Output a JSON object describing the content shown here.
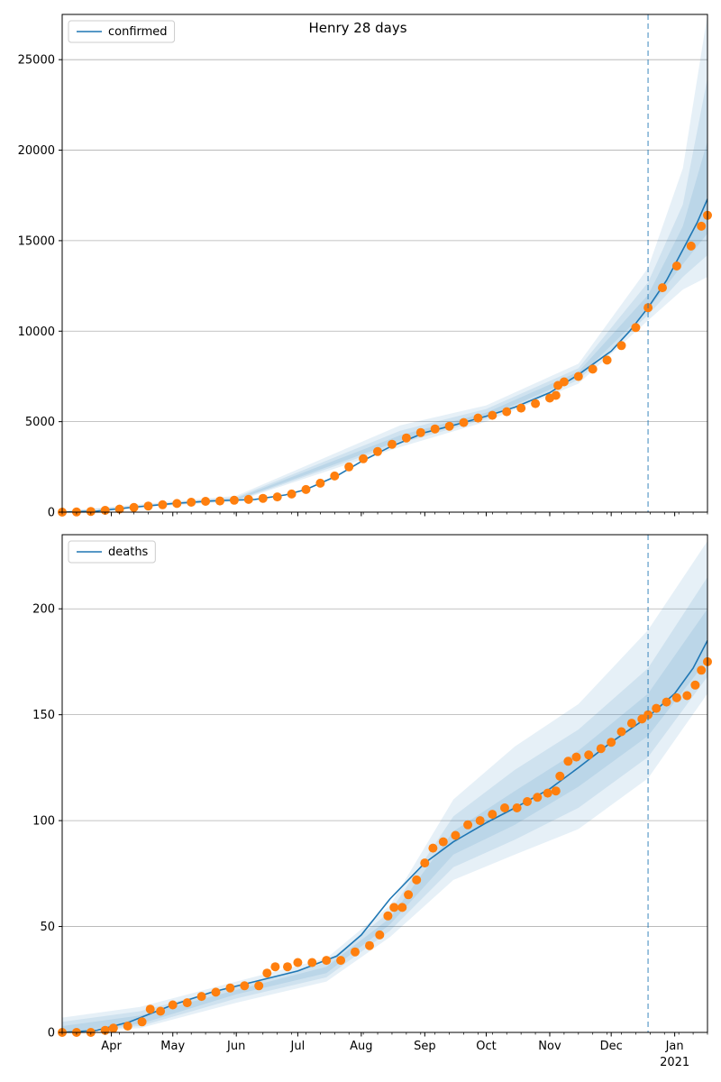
{
  "figure_title": "Henry 28 days",
  "colors": {
    "model": "#1f77b4",
    "observed": "#ff7f0e",
    "band": "#1f77b4",
    "grid": "#b0b0b0",
    "vline": "#1f77b4"
  },
  "x_axis": {
    "start": "2020-03-08",
    "end": "2021-01-17",
    "vline_date": "2020-12-19",
    "ticks": [
      {
        "date": "2020-04-01",
        "label": "Apr"
      },
      {
        "date": "2020-05-01",
        "label": "May"
      },
      {
        "date": "2020-06-01",
        "label": "Jun"
      },
      {
        "date": "2020-07-01",
        "label": "Jul"
      },
      {
        "date": "2020-08-01",
        "label": "Aug"
      },
      {
        "date": "2020-09-01",
        "label": "Sep"
      },
      {
        "date": "2020-10-01",
        "label": "Oct"
      },
      {
        "date": "2020-11-01",
        "label": "Nov"
      },
      {
        "date": "2020-12-01",
        "label": "Dec"
      },
      {
        "date": "2021-01-01",
        "label": "Jan"
      }
    ],
    "year_label": "2021"
  },
  "chart_data": [
    {
      "type": "line",
      "legend": "confirmed",
      "legend_position": "upper-left",
      "ylim": [
        0,
        27500
      ],
      "yticks": [
        0,
        5000,
        10000,
        15000,
        20000,
        25000
      ],
      "grid": true,
      "model_line": [
        [
          "2020-03-08",
          0
        ],
        [
          "2020-03-25",
          60
        ],
        [
          "2020-04-10",
          250
        ],
        [
          "2020-05-01",
          480
        ],
        [
          "2020-05-20",
          620
        ],
        [
          "2020-06-10",
          700
        ],
        [
          "2020-06-25",
          950
        ],
        [
          "2020-07-05",
          1250
        ],
        [
          "2020-07-20",
          2000
        ],
        [
          "2020-08-01",
          2800
        ],
        [
          "2020-08-15",
          3600
        ],
        [
          "2020-09-01",
          4400
        ],
        [
          "2020-09-15",
          4800
        ],
        [
          "2020-10-01",
          5300
        ],
        [
          "2020-10-15",
          5800
        ],
        [
          "2020-11-01",
          6600
        ],
        [
          "2020-11-15",
          7600
        ],
        [
          "2020-12-01",
          8900
        ],
        [
          "2020-12-10",
          10000
        ],
        [
          "2020-12-19",
          11300
        ],
        [
          "2020-12-28",
          12800
        ],
        [
          "2021-01-05",
          14500
        ],
        [
          "2021-01-12",
          16000
        ],
        [
          "2021-01-17",
          17300
        ]
      ],
      "observed": [
        [
          "2020-03-08",
          0
        ],
        [
          "2020-03-15",
          10
        ],
        [
          "2020-03-22",
          40
        ],
        [
          "2020-03-29",
          100
        ],
        [
          "2020-04-05",
          170
        ],
        [
          "2020-04-12",
          260
        ],
        [
          "2020-04-19",
          340
        ],
        [
          "2020-04-26",
          410
        ],
        [
          "2020-05-03",
          480
        ],
        [
          "2020-05-10",
          550
        ],
        [
          "2020-05-17",
          600
        ],
        [
          "2020-05-24",
          620
        ],
        [
          "2020-05-31",
          660
        ],
        [
          "2020-06-07",
          700
        ],
        [
          "2020-06-14",
          760
        ],
        [
          "2020-06-21",
          840
        ],
        [
          "2020-06-28",
          1000
        ],
        [
          "2020-07-05",
          1250
        ],
        [
          "2020-07-12",
          1600
        ],
        [
          "2020-07-19",
          2000
        ],
        [
          "2020-07-26",
          2500
        ],
        [
          "2020-08-02",
          2950
        ],
        [
          "2020-08-09",
          3350
        ],
        [
          "2020-08-16",
          3750
        ],
        [
          "2020-08-23",
          4100
        ],
        [
          "2020-08-30",
          4400
        ],
        [
          "2020-09-06",
          4600
        ],
        [
          "2020-09-13",
          4750
        ],
        [
          "2020-09-20",
          4950
        ],
        [
          "2020-09-27",
          5200
        ],
        [
          "2020-10-04",
          5350
        ],
        [
          "2020-10-11",
          5550
        ],
        [
          "2020-10-18",
          5750
        ],
        [
          "2020-10-25",
          6000
        ],
        [
          "2020-11-01",
          6300
        ],
        [
          "2020-11-04",
          6450
        ],
        [
          "2020-11-05",
          7000
        ],
        [
          "2020-11-08",
          7200
        ],
        [
          "2020-11-15",
          7500
        ],
        [
          "2020-11-22",
          7900
        ],
        [
          "2020-11-29",
          8400
        ],
        [
          "2020-12-06",
          9200
        ],
        [
          "2020-12-13",
          10200
        ],
        [
          "2020-12-19",
          11300
        ],
        [
          "2020-12-26",
          12400
        ],
        [
          "2021-01-02",
          13600
        ],
        [
          "2021-01-09",
          14700
        ],
        [
          "2021-01-14",
          15800
        ],
        [
          "2021-01-17",
          16400
        ]
      ],
      "bands": [
        {
          "upper": [
            [
              "2020-03-08",
              50
            ],
            [
              "2020-06-01",
              900
            ],
            [
              "2020-08-20",
              4800
            ],
            [
              "2020-10-01",
              5900
            ],
            [
              "2020-11-15",
              8200
            ],
            [
              "2020-12-19",
              13500
            ],
            [
              "2021-01-05",
              19000
            ],
            [
              "2021-01-17",
              27500
            ]
          ],
          "lower": [
            [
              "2020-03-08",
              0
            ],
            [
              "2020-06-01",
              600
            ],
            [
              "2020-08-20",
              3600
            ],
            [
              "2020-10-01",
              5000
            ],
            [
              "2020-11-15",
              7100
            ],
            [
              "2020-12-19",
              10600
            ],
            [
              "2021-01-05",
              12300
            ],
            [
              "2021-01-17",
              13000
            ]
          ]
        },
        {
          "upper": [
            [
              "2020-03-08",
              30
            ],
            [
              "2020-06-01",
              820
            ],
            [
              "2020-08-20",
              4500
            ],
            [
              "2020-10-01",
              5700
            ],
            [
              "2020-11-15",
              7950
            ],
            [
              "2020-12-19",
              12700
            ],
            [
              "2021-01-05",
              17000
            ],
            [
              "2021-01-17",
              24000
            ]
          ],
          "lower": [
            [
              "2020-03-08",
              0
            ],
            [
              "2020-06-01",
              640
            ],
            [
              "2020-08-20",
              3800
            ],
            [
              "2020-10-01",
              5150
            ],
            [
              "2020-11-15",
              7300
            ],
            [
              "2020-12-19",
              10900
            ],
            [
              "2021-01-05",
              13000
            ],
            [
              "2021-01-17",
              14200
            ]
          ]
        },
        {
          "upper": [
            [
              "2020-03-08",
              10
            ],
            [
              "2020-06-01",
              760
            ],
            [
              "2020-08-20",
              4250
            ],
            [
              "2020-10-01",
              5500
            ],
            [
              "2020-11-15",
              7750
            ],
            [
              "2020-12-19",
              12000
            ],
            [
              "2021-01-05",
              15800
            ],
            [
              "2021-01-17",
              20500
            ]
          ],
          "lower": [
            [
              "2020-03-08",
              0
            ],
            [
              "2020-06-01",
              680
            ],
            [
              "2020-08-20",
              3950
            ],
            [
              "2020-10-01",
              5250
            ],
            [
              "2020-11-15",
              7450
            ],
            [
              "2020-12-19",
              11200
            ],
            [
              "2021-01-05",
              13700
            ],
            [
              "2021-01-17",
              15400
            ]
          ]
        }
      ]
    },
    {
      "type": "line",
      "legend": "deaths",
      "legend_position": "upper-left",
      "ylim": [
        0,
        235
      ],
      "yticks": [
        0,
        50,
        100,
        150,
        200
      ],
      "grid": true,
      "model_line": [
        [
          "2020-03-08",
          0
        ],
        [
          "2020-03-25",
          1
        ],
        [
          "2020-04-10",
          5
        ],
        [
          "2020-05-01",
          13
        ],
        [
          "2020-05-20",
          19
        ],
        [
          "2020-06-10",
          24
        ],
        [
          "2020-07-01",
          29
        ],
        [
          "2020-07-20",
          36
        ],
        [
          "2020-08-01",
          46
        ],
        [
          "2020-08-15",
          63
        ],
        [
          "2020-09-01",
          80
        ],
        [
          "2020-09-15",
          90
        ],
        [
          "2020-10-01",
          99
        ],
        [
          "2020-10-15",
          106
        ],
        [
          "2020-11-01",
          115
        ],
        [
          "2020-11-15",
          125
        ],
        [
          "2020-12-01",
          137
        ],
        [
          "2020-12-19",
          149
        ],
        [
          "2021-01-01",
          160
        ],
        [
          "2021-01-10",
          172
        ],
        [
          "2021-01-17",
          185
        ]
      ],
      "observed": [
        [
          "2020-03-08",
          0
        ],
        [
          "2020-03-15",
          0
        ],
        [
          "2020-03-22",
          0
        ],
        [
          "2020-03-29",
          1
        ],
        [
          "2020-04-02",
          2
        ],
        [
          "2020-04-09",
          3
        ],
        [
          "2020-04-16",
          5
        ],
        [
          "2020-04-20",
          11
        ],
        [
          "2020-04-25",
          10
        ],
        [
          "2020-05-01",
          13
        ],
        [
          "2020-05-08",
          14
        ],
        [
          "2020-05-15",
          17
        ],
        [
          "2020-05-22",
          19
        ],
        [
          "2020-05-29",
          21
        ],
        [
          "2020-06-05",
          22
        ],
        [
          "2020-06-12",
          22
        ],
        [
          "2020-06-16",
          28
        ],
        [
          "2020-06-20",
          31
        ],
        [
          "2020-06-26",
          31
        ],
        [
          "2020-07-01",
          33
        ],
        [
          "2020-07-08",
          33
        ],
        [
          "2020-07-15",
          34
        ],
        [
          "2020-07-22",
          34
        ],
        [
          "2020-07-29",
          38
        ],
        [
          "2020-08-05",
          41
        ],
        [
          "2020-08-10",
          46
        ],
        [
          "2020-08-14",
          55
        ],
        [
          "2020-08-17",
          59
        ],
        [
          "2020-08-21",
          59
        ],
        [
          "2020-08-24",
          65
        ],
        [
          "2020-08-28",
          72
        ],
        [
          "2020-09-01",
          80
        ],
        [
          "2020-09-05",
          87
        ],
        [
          "2020-09-10",
          90
        ],
        [
          "2020-09-16",
          93
        ],
        [
          "2020-09-22",
          98
        ],
        [
          "2020-09-28",
          100
        ],
        [
          "2020-10-04",
          103
        ],
        [
          "2020-10-10",
          106
        ],
        [
          "2020-10-16",
          106
        ],
        [
          "2020-10-21",
          109
        ],
        [
          "2020-10-26",
          111
        ],
        [
          "2020-10-31",
          113
        ],
        [
          "2020-11-04",
          114
        ],
        [
          "2020-11-06",
          121
        ],
        [
          "2020-11-10",
          128
        ],
        [
          "2020-11-14",
          130
        ],
        [
          "2020-11-20",
          131
        ],
        [
          "2020-11-26",
          134
        ],
        [
          "2020-12-01",
          137
        ],
        [
          "2020-12-06",
          142
        ],
        [
          "2020-12-11",
          146
        ],
        [
          "2020-12-16",
          148
        ],
        [
          "2020-12-19",
          150
        ],
        [
          "2020-12-23",
          153
        ],
        [
          "2020-12-28",
          156
        ],
        [
          "2021-01-02",
          158
        ],
        [
          "2021-01-07",
          159
        ],
        [
          "2021-01-11",
          164
        ],
        [
          "2021-01-14",
          171
        ],
        [
          "2021-01-17",
          175
        ]
      ],
      "bands": [
        {
          "upper": [
            [
              "2020-03-08",
              7
            ],
            [
              "2020-04-15",
              12
            ],
            [
              "2020-06-01",
              24
            ],
            [
              "2020-07-15",
              35
            ],
            [
              "2020-08-15",
              60
            ],
            [
              "2020-09-15",
              110
            ],
            [
              "2020-10-15",
              135
            ],
            [
              "2020-11-15",
              155
            ],
            [
              "2020-12-19",
              190
            ],
            [
              "2021-01-17",
              232
            ]
          ],
          "lower": [
            [
              "2020-03-08",
              0
            ],
            [
              "2020-04-15",
              2
            ],
            [
              "2020-06-01",
              14
            ],
            [
              "2020-07-15",
              24
            ],
            [
              "2020-08-15",
              45
            ],
            [
              "2020-09-15",
              72
            ],
            [
              "2020-10-15",
              84
            ],
            [
              "2020-11-15",
              96
            ],
            [
              "2020-12-19",
              120
            ],
            [
              "2021-01-17",
              160
            ]
          ]
        },
        {
          "upper": [
            [
              "2020-03-08",
              5
            ],
            [
              "2020-04-15",
              10
            ],
            [
              "2020-06-01",
              22
            ],
            [
              "2020-07-15",
              33
            ],
            [
              "2020-08-15",
              57
            ],
            [
              "2020-09-15",
              102
            ],
            [
              "2020-10-15",
              124
            ],
            [
              "2020-11-15",
              143
            ],
            [
              "2020-12-19",
              172
            ],
            [
              "2021-01-17",
              215
            ]
          ],
          "lower": [
            [
              "2020-03-08",
              0
            ],
            [
              "2020-04-15",
              3
            ],
            [
              "2020-06-01",
              16
            ],
            [
              "2020-07-15",
              26
            ],
            [
              "2020-08-15",
              48
            ],
            [
              "2020-09-15",
              78
            ],
            [
              "2020-10-15",
              91
            ],
            [
              "2020-11-15",
              106
            ],
            [
              "2020-12-19",
              130
            ],
            [
              "2021-01-17",
              168
            ]
          ]
        },
        {
          "upper": [
            [
              "2020-03-08",
              3
            ],
            [
              "2020-04-15",
              8
            ],
            [
              "2020-06-01",
              20
            ],
            [
              "2020-07-15",
              31
            ],
            [
              "2020-08-15",
              54
            ],
            [
              "2020-09-15",
              95
            ],
            [
              "2020-10-15",
              114
            ],
            [
              "2020-11-15",
              133
            ],
            [
              "2020-12-19",
              160
            ],
            [
              "2021-01-17",
              200
            ]
          ],
          "lower": [
            [
              "2020-03-08",
              0
            ],
            [
              "2020-04-15",
              4
            ],
            [
              "2020-06-01",
              18
            ],
            [
              "2020-07-15",
              28
            ],
            [
              "2020-08-15",
              51
            ],
            [
              "2020-09-15",
              84
            ],
            [
              "2020-10-15",
              98
            ],
            [
              "2020-11-15",
              116
            ],
            [
              "2020-12-19",
              140
            ],
            [
              "2021-01-17",
              176
            ]
          ]
        }
      ]
    }
  ]
}
